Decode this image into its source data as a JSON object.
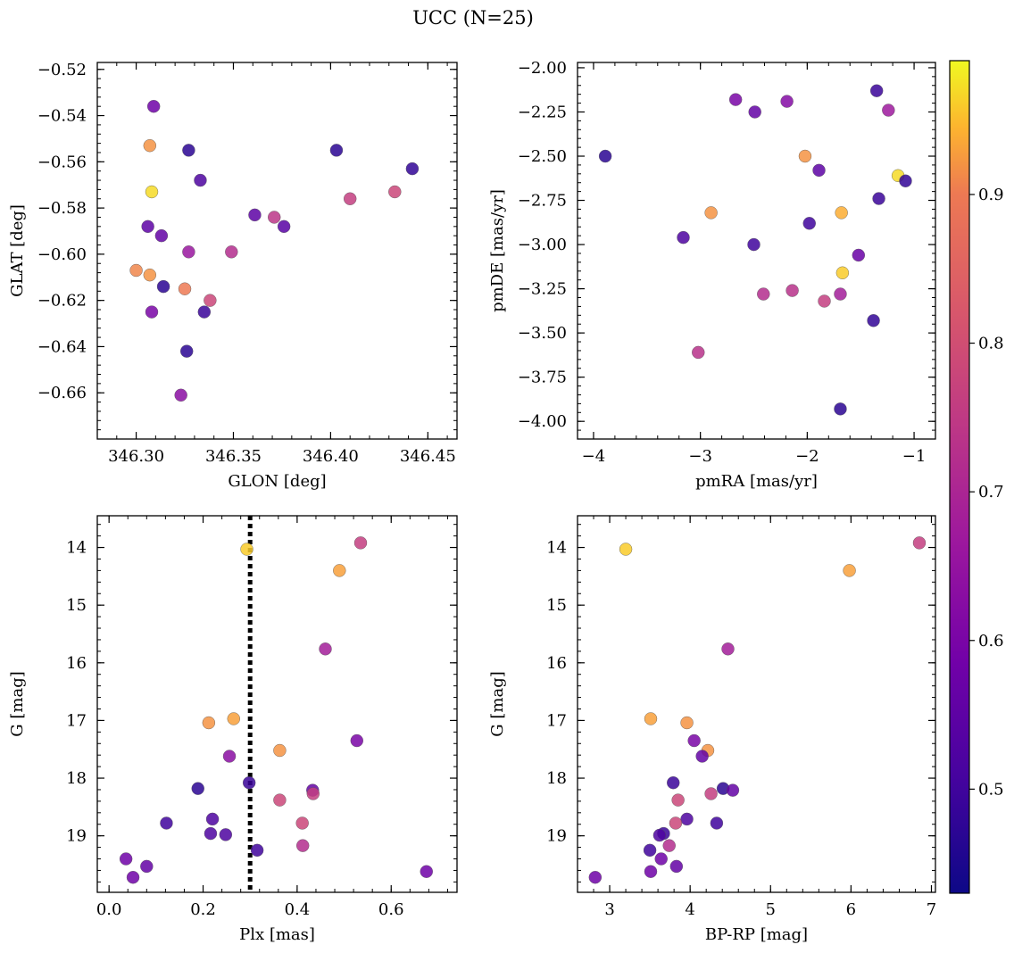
{
  "figure": {
    "title": "UCC (N=25)",
    "colormap": "plasma",
    "colorbar": {
      "range": [
        0.43,
        0.99
      ],
      "ticks": [
        0.5,
        0.6,
        0.7,
        0.8,
        0.9
      ],
      "tick_labels": [
        "0.5",
        "0.6",
        "0.7",
        "0.8",
        "0.9"
      ]
    }
  },
  "chart_data": [
    {
      "type": "scatter",
      "name": "glon-glat",
      "xlabel": "GLON [deg]",
      "ylabel": "GLAT [deg]",
      "xlim": [
        346.28,
        346.465
      ],
      "ylim": [
        -0.68,
        -0.517
      ],
      "xticks": [
        346.3,
        346.35,
        346.4,
        346.45
      ],
      "xtick_labels": [
        "346.30",
        "346.35",
        "346.40",
        "346.45"
      ],
      "yticks": [
        -0.66,
        -0.64,
        -0.62,
        -0.6,
        -0.58,
        -0.56,
        -0.54,
        -0.52
      ],
      "ytick_labels": [
        "−0.66",
        "−0.64",
        "−0.62",
        "−0.60",
        "−0.58",
        "−0.56",
        "−0.54",
        "−0.52"
      ],
      "points": [
        {
          "x": 346.309,
          "y": -0.536,
          "c": 0.58
        },
        {
          "x": 346.307,
          "y": -0.553,
          "c": 0.92
        },
        {
          "x": 346.327,
          "y": -0.555,
          "c": 0.47
        },
        {
          "x": 346.403,
          "y": -0.555,
          "c": 0.47
        },
        {
          "x": 346.442,
          "y": -0.563,
          "c": 0.48
        },
        {
          "x": 346.333,
          "y": -0.568,
          "c": 0.52
        },
        {
          "x": 346.308,
          "y": -0.573,
          "c": 0.97
        },
        {
          "x": 346.433,
          "y": -0.573,
          "c": 0.78
        },
        {
          "x": 346.41,
          "y": -0.576,
          "c": 0.76
        },
        {
          "x": 346.361,
          "y": -0.583,
          "c": 0.55
        },
        {
          "x": 346.371,
          "y": -0.584,
          "c": 0.74
        },
        {
          "x": 346.376,
          "y": -0.588,
          "c": 0.54
        },
        {
          "x": 346.306,
          "y": -0.588,
          "c": 0.55
        },
        {
          "x": 346.313,
          "y": -0.592,
          "c": 0.56
        },
        {
          "x": 346.327,
          "y": -0.599,
          "c": 0.66
        },
        {
          "x": 346.349,
          "y": -0.599,
          "c": 0.72
        },
        {
          "x": 346.3,
          "y": -0.607,
          "c": 0.91
        },
        {
          "x": 346.307,
          "y": -0.609,
          "c": 0.92
        },
        {
          "x": 346.314,
          "y": -0.614,
          "c": 0.47
        },
        {
          "x": 346.325,
          "y": -0.615,
          "c": 0.9
        },
        {
          "x": 346.338,
          "y": -0.62,
          "c": 0.78
        },
        {
          "x": 346.308,
          "y": -0.625,
          "c": 0.6
        },
        {
          "x": 346.335,
          "y": -0.625,
          "c": 0.49
        },
        {
          "x": 346.326,
          "y": -0.642,
          "c": 0.47
        },
        {
          "x": 346.323,
          "y": -0.661,
          "c": 0.63
        }
      ]
    },
    {
      "type": "scatter",
      "name": "pmra-pmde",
      "xlabel": "pmRA [mas/yr]",
      "ylabel": "pmDE [mas/yr]",
      "xlim": [
        -4.15,
        -0.8
      ],
      "ylim": [
        -4.1,
        -1.97
      ],
      "xticks": [
        -4,
        -3,
        -2,
        -1
      ],
      "xtick_labels": [
        "−4",
        "−3",
        "−2",
        "−1"
      ],
      "yticks": [
        -4.0,
        -3.75,
        -3.5,
        -3.25,
        -3.0,
        -2.75,
        -2.5,
        -2.25,
        -2.0
      ],
      "ytick_labels": [
        "−4.00",
        "−3.75",
        "−3.50",
        "−3.25",
        "−3.00",
        "−2.75",
        "−2.50",
        "−2.25",
        "−2.00"
      ],
      "points": [
        {
          "x": -1.35,
          "y": -2.13,
          "c": 0.49
        },
        {
          "x": -2.67,
          "y": -2.18,
          "c": 0.6
        },
        {
          "x": -2.19,
          "y": -2.19,
          "c": 0.62
        },
        {
          "x": -1.24,
          "y": -2.24,
          "c": 0.67
        },
        {
          "x": -2.49,
          "y": -2.25,
          "c": 0.56
        },
        {
          "x": -3.89,
          "y": -2.5,
          "c": 0.47
        },
        {
          "x": -2.02,
          "y": -2.5,
          "c": 0.92
        },
        {
          "x": -1.89,
          "y": -2.58,
          "c": 0.55
        },
        {
          "x": -1.15,
          "y": -2.61,
          "c": 0.97
        },
        {
          "x": -1.08,
          "y": -2.64,
          "c": 0.48
        },
        {
          "x": -1.33,
          "y": -2.74,
          "c": 0.49
        },
        {
          "x": -2.9,
          "y": -2.82,
          "c": 0.92
        },
        {
          "x": -1.68,
          "y": -2.82,
          "c": 0.94
        },
        {
          "x": -1.98,
          "y": -2.88,
          "c": 0.5
        },
        {
          "x": -3.16,
          "y": -2.96,
          "c": 0.52
        },
        {
          "x": -2.5,
          "y": -3.0,
          "c": 0.5
        },
        {
          "x": -1.52,
          "y": -3.06,
          "c": 0.57
        },
        {
          "x": -1.67,
          "y": -3.16,
          "c": 0.96
        },
        {
          "x": -2.14,
          "y": -3.26,
          "c": 0.73
        },
        {
          "x": -2.41,
          "y": -3.28,
          "c": 0.72
        },
        {
          "x": -1.69,
          "y": -3.28,
          "c": 0.68
        },
        {
          "x": -1.84,
          "y": -3.32,
          "c": 0.76
        },
        {
          "x": -1.38,
          "y": -3.43,
          "c": 0.48
        },
        {
          "x": -3.02,
          "y": -3.61,
          "c": 0.73
        },
        {
          "x": -1.69,
          "y": -3.93,
          "c": 0.47
        }
      ]
    },
    {
      "type": "scatter",
      "name": "plx-g",
      "xlabel": "Plx [mas]",
      "ylabel": "G [mag]",
      "xlim": [
        -0.025,
        0.74
      ],
      "ylim": [
        19.98,
        13.45
      ],
      "xticks": [
        0.0,
        0.2,
        0.4,
        0.6
      ],
      "xtick_labels": [
        "0.0",
        "0.2",
        "0.4",
        "0.6"
      ],
      "yticks": [
        14,
        15,
        16,
        17,
        18,
        19
      ],
      "ytick_labels": [
        "14",
        "15",
        "16",
        "17",
        "18",
        "19"
      ],
      "vline": 0.3,
      "points": [
        {
          "x": 0.535,
          "y": 13.92,
          "c": 0.76
        },
        {
          "x": 0.293,
          "y": 14.03,
          "c": 0.96
        },
        {
          "x": 0.49,
          "y": 14.4,
          "c": 0.93
        },
        {
          "x": 0.46,
          "y": 15.76,
          "c": 0.68
        },
        {
          "x": 0.265,
          "y": 16.97,
          "c": 0.93
        },
        {
          "x": 0.212,
          "y": 17.04,
          "c": 0.92
        },
        {
          "x": 0.363,
          "y": 17.52,
          "c": 0.92
        },
        {
          "x": 0.527,
          "y": 17.35,
          "c": 0.6
        },
        {
          "x": 0.256,
          "y": 17.62,
          "c": 0.63
        },
        {
          "x": 0.298,
          "y": 18.08,
          "c": 0.49
        },
        {
          "x": 0.189,
          "y": 18.18,
          "c": 0.47
        },
        {
          "x": 0.433,
          "y": 18.21,
          "c": 0.56
        },
        {
          "x": 0.434,
          "y": 18.27,
          "c": 0.76
        },
        {
          "x": 0.363,
          "y": 18.38,
          "c": 0.78
        },
        {
          "x": 0.122,
          "y": 18.78,
          "c": 0.5
        },
        {
          "x": 0.22,
          "y": 18.71,
          "c": 0.52
        },
        {
          "x": 0.411,
          "y": 18.78,
          "c": 0.78
        },
        {
          "x": 0.216,
          "y": 18.96,
          "c": 0.52
        },
        {
          "x": 0.248,
          "y": 18.98,
          "c": 0.52
        },
        {
          "x": 0.412,
          "y": 19.17,
          "c": 0.72
        },
        {
          "x": 0.315,
          "y": 19.25,
          "c": 0.5
        },
        {
          "x": 0.036,
          "y": 19.4,
          "c": 0.58
        },
        {
          "x": 0.08,
          "y": 19.53,
          "c": 0.56
        },
        {
          "x": 0.051,
          "y": 19.72,
          "c": 0.58
        },
        {
          "x": 0.675,
          "y": 19.62,
          "c": 0.58
        }
      ]
    },
    {
      "type": "scatter",
      "name": "bprp-g",
      "xlabel": "BP-RP [mag]",
      "ylabel": "G [mag]",
      "xlim": [
        2.6,
        7.05
      ],
      "ylim": [
        19.98,
        13.45
      ],
      "xticks": [
        3,
        4,
        5,
        6,
        7
      ],
      "xtick_labels": [
        "3",
        "4",
        "5",
        "6",
        "7"
      ],
      "yticks": [
        14,
        15,
        16,
        17,
        18,
        19
      ],
      "ytick_labels": [
        "14",
        "15",
        "16",
        "17",
        "18",
        "19"
      ],
      "points": [
        {
          "x": 6.85,
          "y": 13.92,
          "c": 0.76
        },
        {
          "x": 3.2,
          "y": 14.03,
          "c": 0.96
        },
        {
          "x": 5.98,
          "y": 14.4,
          "c": 0.93
        },
        {
          "x": 4.47,
          "y": 15.76,
          "c": 0.68
        },
        {
          "x": 3.51,
          "y": 16.97,
          "c": 0.93
        },
        {
          "x": 3.96,
          "y": 17.04,
          "c": 0.92
        },
        {
          "x": 4.05,
          "y": 17.35,
          "c": 0.6
        },
        {
          "x": 4.22,
          "y": 17.52,
          "c": 0.92
        },
        {
          "x": 4.15,
          "y": 17.62,
          "c": 0.56
        },
        {
          "x": 3.79,
          "y": 18.08,
          "c": 0.49
        },
        {
          "x": 4.41,
          "y": 18.18,
          "c": 0.47
        },
        {
          "x": 4.53,
          "y": 18.21,
          "c": 0.56
        },
        {
          "x": 4.26,
          "y": 18.27,
          "c": 0.76
        },
        {
          "x": 3.85,
          "y": 18.38,
          "c": 0.78
        },
        {
          "x": 3.96,
          "y": 18.71,
          "c": 0.52
        },
        {
          "x": 4.33,
          "y": 18.78,
          "c": 0.5
        },
        {
          "x": 3.82,
          "y": 18.78,
          "c": 0.78
        },
        {
          "x": 3.67,
          "y": 18.96,
          "c": 0.49
        },
        {
          "x": 3.62,
          "y": 18.99,
          "c": 0.52
        },
        {
          "x": 3.74,
          "y": 19.17,
          "c": 0.72
        },
        {
          "x": 3.5,
          "y": 19.25,
          "c": 0.5
        },
        {
          "x": 3.64,
          "y": 19.4,
          "c": 0.58
        },
        {
          "x": 3.83,
          "y": 19.53,
          "c": 0.56
        },
        {
          "x": 3.51,
          "y": 19.62,
          "c": 0.58
        },
        {
          "x": 2.82,
          "y": 19.72,
          "c": 0.58
        }
      ]
    }
  ]
}
